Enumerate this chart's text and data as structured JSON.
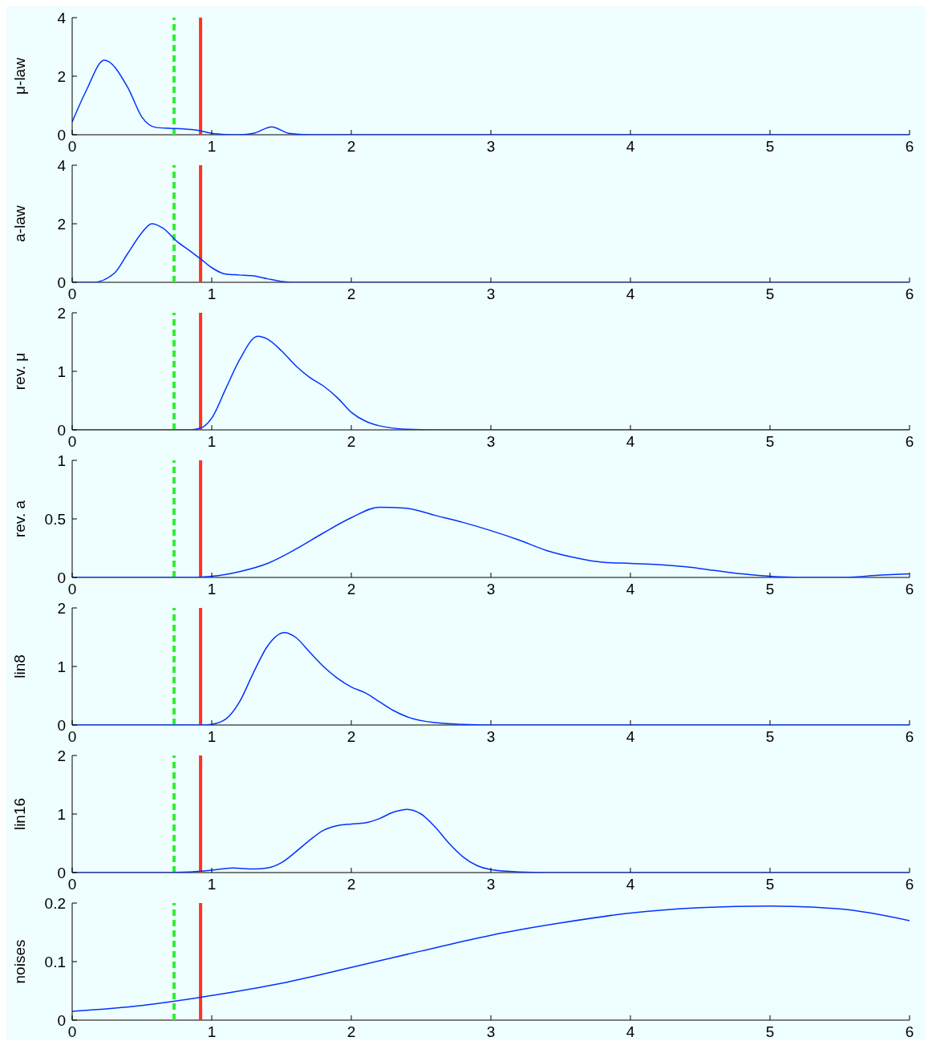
{
  "chart_data": [
    {
      "type": "line",
      "ylabel": "μ-law",
      "xlim": [
        0,
        6
      ],
      "xticks": [
        0,
        1,
        2,
        3,
        4,
        5,
        6
      ],
      "ylim": [
        0,
        4
      ],
      "yticks": [
        0,
        2,
        4
      ],
      "series": [
        {
          "color": "#0033ff",
          "x": [
            0,
            0.1,
            0.23,
            0.4,
            0.5,
            0.6,
            0.7,
            0.8,
            0.9,
            1.0,
            1.1,
            1.2,
            1.3,
            1.43,
            1.55,
            1.7,
            2,
            3,
            4,
            5,
            6
          ],
          "values": [
            0.44,
            1.5,
            2.55,
            1.6,
            0.6,
            0.25,
            0.22,
            0.2,
            0.15,
            0.05,
            0.01,
            0,
            0.05,
            0.27,
            0.05,
            0,
            0,
            0,
            0,
            0,
            0
          ]
        }
      ],
      "ref_lines": [
        {
          "axis": "x",
          "value": 0.73,
          "color": "#33ee33",
          "line_style": "dashed"
        },
        {
          "axis": "x",
          "value": 0.92,
          "color": "#ff3322",
          "line_style": "solid"
        }
      ]
    },
    {
      "type": "line",
      "ylabel": "a-law",
      "xlim": [
        0,
        6
      ],
      "xticks": [
        0,
        1,
        2,
        3,
        4,
        5,
        6
      ],
      "ylim": [
        0,
        4
      ],
      "yticks": [
        0,
        2,
        4
      ],
      "series": [
        {
          "color": "#0033ff",
          "x": [
            0,
            0.15,
            0.3,
            0.4,
            0.5,
            0.57,
            0.65,
            0.75,
            0.85,
            0.92,
            1.0,
            1.1,
            1.2,
            1.3,
            1.4,
            1.5,
            1.6,
            2,
            3,
            4,
            5,
            6
          ],
          "values": [
            0,
            0,
            0.3,
            1.0,
            1.7,
            2.0,
            1.85,
            1.4,
            1.05,
            0.8,
            0.5,
            0.28,
            0.25,
            0.22,
            0.12,
            0.03,
            0,
            0,
            0,
            0,
            0,
            0
          ]
        }
      ],
      "ref_lines": [
        {
          "axis": "x",
          "value": 0.73,
          "color": "#33ee33",
          "line_style": "dashed"
        },
        {
          "axis": "x",
          "value": 0.92,
          "color": "#ff3322",
          "line_style": "solid"
        }
      ]
    },
    {
      "type": "line",
      "ylabel": "rev. μ",
      "xlim": [
        0,
        6
      ],
      "xticks": [
        0,
        1,
        2,
        3,
        4,
        5,
        6
      ],
      "ylim": [
        0,
        2
      ],
      "yticks": [
        0,
        1,
        2
      ],
      "series": [
        {
          "color": "#0033ff",
          "x": [
            0,
            0.85,
            0.92,
            1.0,
            1.1,
            1.2,
            1.33,
            1.4,
            1.5,
            1.6,
            1.7,
            1.8,
            1.9,
            2.0,
            2.1,
            2.2,
            2.4,
            2.6,
            3,
            4,
            5,
            6
          ],
          "values": [
            0,
            0,
            0.03,
            0.2,
            0.7,
            1.2,
            1.6,
            1.55,
            1.35,
            1.1,
            0.9,
            0.75,
            0.55,
            0.3,
            0.15,
            0.07,
            0.01,
            0,
            0,
            0,
            0,
            0
          ]
        }
      ],
      "ref_lines": [
        {
          "axis": "x",
          "value": 0.73,
          "color": "#33ee33",
          "line_style": "dashed"
        },
        {
          "axis": "x",
          "value": 0.92,
          "color": "#ff3322",
          "line_style": "solid"
        }
      ]
    },
    {
      "type": "line",
      "ylabel": "rev. a",
      "xlim": [
        0,
        6
      ],
      "xticks": [
        0,
        1,
        2,
        3,
        4,
        5,
        6
      ],
      "ylim": [
        0,
        1
      ],
      "yticks": [
        0,
        0.5,
        1
      ],
      "series": [
        {
          "color": "#0033ff",
          "x": [
            0,
            0.8,
            1.0,
            1.2,
            1.4,
            1.6,
            1.8,
            2.0,
            2.2,
            2.4,
            2.6,
            2.8,
            3.0,
            3.2,
            3.4,
            3.6,
            3.8,
            4.0,
            4.2,
            4.4,
            4.6,
            4.8,
            5.0,
            5.2,
            5.5,
            5.8,
            6
          ],
          "values": [
            0,
            0,
            0.01,
            0.05,
            0.12,
            0.24,
            0.38,
            0.51,
            0.6,
            0.59,
            0.53,
            0.47,
            0.4,
            0.32,
            0.23,
            0.17,
            0.13,
            0.12,
            0.11,
            0.09,
            0.06,
            0.03,
            0.01,
            0,
            0,
            0.02,
            0.03
          ]
        }
      ],
      "ref_lines": [
        {
          "axis": "x",
          "value": 0.73,
          "color": "#33ee33",
          "line_style": "dashed"
        },
        {
          "axis": "x",
          "value": 0.92,
          "color": "#ff3322",
          "line_style": "solid"
        }
      ]
    },
    {
      "type": "line",
      "ylabel": "lin8",
      "xlim": [
        0,
        6
      ],
      "xticks": [
        0,
        1,
        2,
        3,
        4,
        5,
        6
      ],
      "ylim": [
        0,
        2
      ],
      "yticks": [
        0,
        1,
        2
      ],
      "series": [
        {
          "color": "#0033ff",
          "x": [
            0,
            0.95,
            1.0,
            1.1,
            1.2,
            1.3,
            1.4,
            1.52,
            1.6,
            1.7,
            1.8,
            1.9,
            2.0,
            2.1,
            2.2,
            2.3,
            2.4,
            2.6,
            2.8,
            3.0,
            4,
            5,
            6
          ],
          "values": [
            0,
            0,
            0.01,
            0.1,
            0.4,
            0.9,
            1.35,
            1.58,
            1.5,
            1.25,
            1.0,
            0.8,
            0.65,
            0.55,
            0.4,
            0.25,
            0.14,
            0.04,
            0.01,
            0,
            0,
            0,
            0
          ]
        }
      ],
      "ref_lines": [
        {
          "axis": "x",
          "value": 0.73,
          "color": "#33ee33",
          "line_style": "dashed"
        },
        {
          "axis": "x",
          "value": 0.92,
          "color": "#ff3322",
          "line_style": "solid"
        }
      ]
    },
    {
      "type": "line",
      "ylabel": "lin16",
      "xlim": [
        0,
        6
      ],
      "xticks": [
        0,
        1,
        2,
        3,
        4,
        5,
        6
      ],
      "ylim": [
        0,
        2
      ],
      "yticks": [
        0,
        1,
        2
      ],
      "series": [
        {
          "color": "#0033ff",
          "x": [
            0,
            0.7,
            0.9,
            1.0,
            1.15,
            1.3,
            1.4,
            1.5,
            1.6,
            1.7,
            1.8,
            1.9,
            2.0,
            2.1,
            2.2,
            2.3,
            2.4,
            2.5,
            2.6,
            2.7,
            2.8,
            2.9,
            3.0,
            3.2,
            3.4,
            4,
            5,
            6
          ],
          "values": [
            0,
            0,
            0.02,
            0.04,
            0.08,
            0.06,
            0.08,
            0.17,
            0.35,
            0.55,
            0.72,
            0.8,
            0.83,
            0.85,
            0.92,
            1.03,
            1.08,
            1.0,
            0.78,
            0.5,
            0.27,
            0.12,
            0.05,
            0.01,
            0,
            0,
            0,
            0
          ]
        }
      ],
      "ref_lines": [
        {
          "axis": "x",
          "value": 0.73,
          "color": "#33ee33",
          "line_style": "dashed"
        },
        {
          "axis": "x",
          "value": 0.92,
          "color": "#ff3322",
          "line_style": "solid"
        }
      ]
    },
    {
      "type": "line",
      "ylabel": "noises",
      "xlim": [
        0,
        6
      ],
      "xticks": [
        0,
        1,
        2,
        3,
        4,
        5,
        6
      ],
      "ylim": [
        0,
        0.2
      ],
      "yticks": [
        0,
        0.1,
        0.2
      ],
      "series": [
        {
          "color": "#0033ff",
          "x": [
            0,
            0.5,
            1,
            1.5,
            2,
            2.5,
            3,
            3.5,
            4,
            4.5,
            5,
            5.5,
            6
          ],
          "values": [
            0.015,
            0.025,
            0.042,
            0.063,
            0.09,
            0.118,
            0.145,
            0.166,
            0.183,
            0.192,
            0.195,
            0.19,
            0.17
          ]
        }
      ],
      "ref_lines": [
        {
          "axis": "x",
          "value": 0.73,
          "color": "#33ee33",
          "line_style": "dashed"
        },
        {
          "axis": "x",
          "value": 0.92,
          "color": "#ff3322",
          "line_style": "solid"
        }
      ]
    }
  ]
}
